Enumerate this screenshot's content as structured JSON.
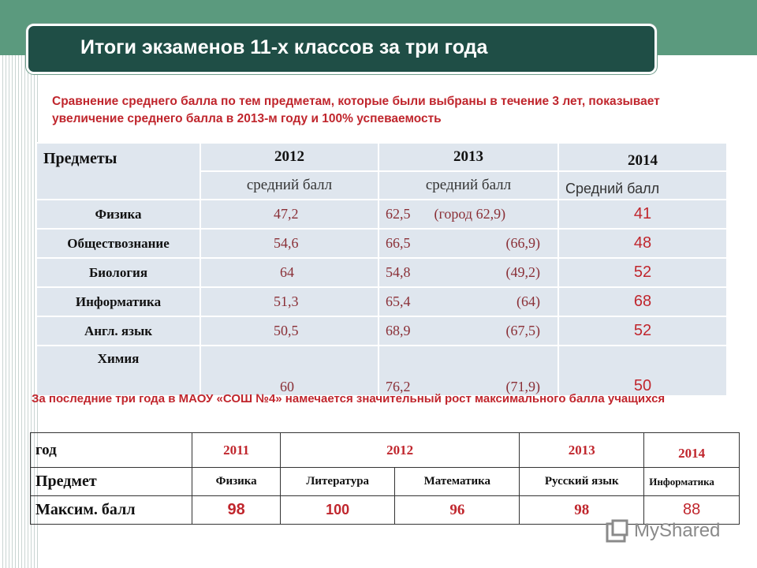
{
  "title": "Итоги  экзаменов 11-х классов за три года",
  "note1": "Сравнение среднего балла по тем предметам, которые были выбраны в течение 3 лет, показывает увеличение среднего балла в 2013-м году и 100% успеваемость",
  "table1": {
    "header": {
      "subjects": "Предметы",
      "y2012": "2012",
      "y2013": "2013",
      "y2014": "2014"
    },
    "subheader": {
      "c2012": "средний балл",
      "c2013": "средний балл",
      "c2014": "Средний балл"
    },
    "rows": [
      {
        "subject": "Физика",
        "v2012": "47,2",
        "v2013": "62,5",
        "v2013_city": "(город 62,9)",
        "v2014": "41"
      },
      {
        "subject": "Обществознание",
        "v2012": "54,6",
        "v2013": "66,5",
        "v2013_city": "(66,9)",
        "v2014": "48"
      },
      {
        "subject": "Биология",
        "v2012": "64",
        "v2013": "54,8",
        "v2013_city": "(49,2)",
        "v2014": "52"
      },
      {
        "subject": "Информатика",
        "v2012": "51,3",
        "v2013": "65,4",
        "v2013_city": "(64)",
        "v2014": "68"
      },
      {
        "subject": "Англ. язык",
        "v2012": "50,5",
        "v2013": "68,9",
        "v2013_city": "(67,5)",
        "v2014": "52"
      },
      {
        "subject": "Химия",
        "v2012": "60",
        "v2013": "76,2",
        "v2013_city": "(71,9)",
        "v2014": "50"
      }
    ]
  },
  "note2": "За последние три года в МАОУ «СОШ №4» намечается значительный рост максимального балла учащихся",
  "table2": {
    "labels": {
      "year": "год",
      "subject": "Предмет",
      "max": "Максим. балл"
    },
    "cols": [
      {
        "year": "2011",
        "subject": "Физика",
        "score": "98"
      },
      {
        "year": "2012",
        "subject": "Литература",
        "score": "100"
      },
      {
        "year": "2012",
        "subject": "Математика",
        "score": "96"
      },
      {
        "year": "2013",
        "subject": "Русский язык",
        "score": "98"
      },
      {
        "year": "2014",
        "subject": "Информатика",
        "score": "88"
      }
    ]
  },
  "logo": {
    "text": "MyShared",
    "icon": "myshared-logo-icon"
  },
  "colors": {
    "accent_red": "#c0262d",
    "title_bg": "#1f4e46",
    "top_band": "#5b9a7e",
    "table_bg": "#dfe6ee"
  }
}
